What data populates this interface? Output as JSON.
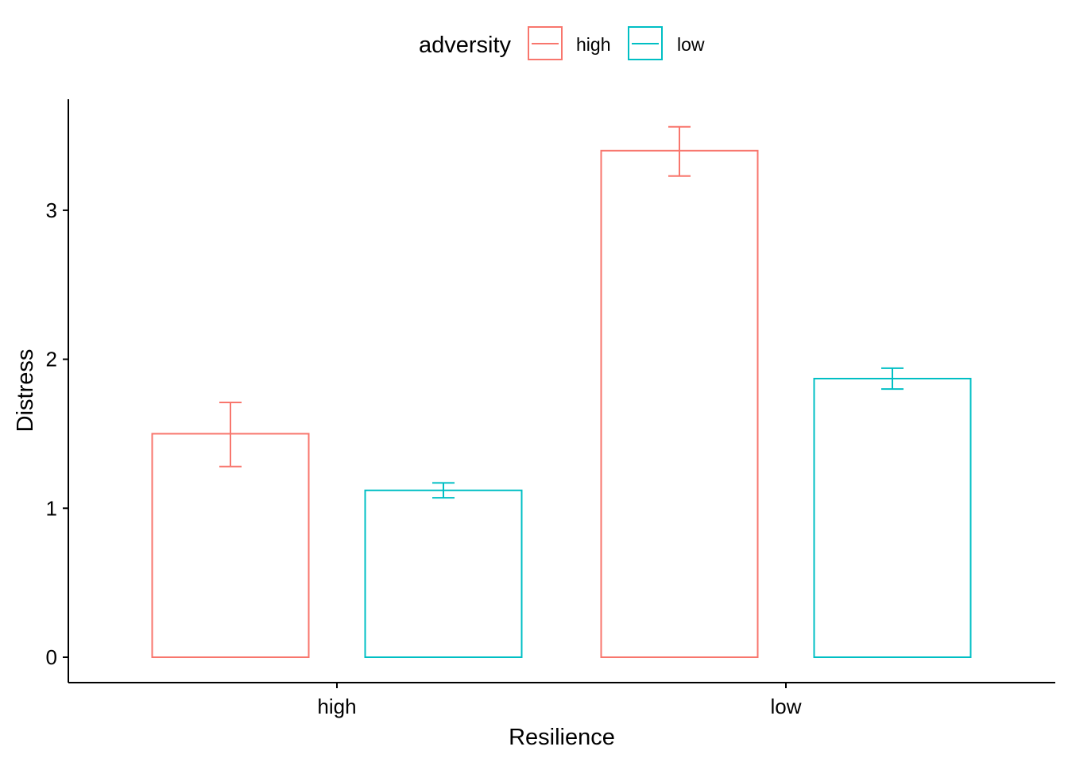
{
  "chart_data": {
    "type": "bar",
    "title": "",
    "xlabel": "Resilience",
    "ylabel": "Distress",
    "categories": [
      "high",
      "low"
    ],
    "ylim": [
      -0.17,
      3.73
    ],
    "yticks": [
      0,
      1,
      2,
      3
    ],
    "ytick_labels": [
      "0",
      "1",
      "2",
      "3"
    ],
    "grid": false,
    "legend": {
      "title": "adversity",
      "placement": "top",
      "entries": [
        "high",
        "low"
      ]
    },
    "series": [
      {
        "name": "high",
        "color": "#F8766D",
        "values": [
          1.5,
          3.4
        ],
        "error_low": [
          1.28,
          3.23
        ],
        "error_high": [
          1.71,
          3.56
        ]
      },
      {
        "name": "low",
        "color": "#00BFC4",
        "values": [
          1.12,
          1.87
        ],
        "error_low": [
          1.07,
          1.8
        ],
        "error_high": [
          1.17,
          1.94
        ]
      }
    ]
  }
}
